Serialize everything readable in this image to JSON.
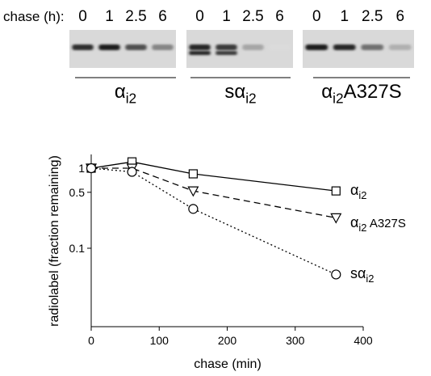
{
  "gel": {
    "chase_label": "chase (h):",
    "groups": [
      {
        "name": "αi2",
        "label_main": "α",
        "label_sub": "i2",
        "label_suffix": "",
        "time_labels": [
          "0",
          "1",
          "2.5",
          "6"
        ],
        "band_intensity": [
          0.85,
          0.95,
          0.7,
          0.45
        ]
      },
      {
        "name": "sαi2",
        "label_main": "sα",
        "label_sub": "i2",
        "label_suffix": "",
        "time_labels": [
          "0",
          "1",
          "2.5",
          "6"
        ],
        "band_intensity": [
          0.9,
          0.8,
          0.3,
          0.05
        ]
      },
      {
        "name": "αi2A327S",
        "label_main": "α",
        "label_sub": "i2",
        "label_suffix": "A327S",
        "time_labels": [
          "0",
          "1",
          "2.5",
          "6"
        ],
        "band_intensity": [
          0.95,
          0.9,
          0.55,
          0.25
        ]
      }
    ]
  },
  "chart_data": {
    "type": "line",
    "xlabel": "chase (min)",
    "ylabel": "radiolabel (fraction remaining)",
    "yscale": "log",
    "xlim": [
      0,
      400
    ],
    "ylim": [
      0.01,
      1.3
    ],
    "xticks": [
      0,
      100,
      200,
      300,
      400
    ],
    "yticks": [
      1,
      0.5,
      0.1
    ],
    "ytick_labels": [
      "1",
      "0.5",
      "0.1"
    ],
    "grid": false,
    "series": [
      {
        "name": "αi2",
        "label_main": "α",
        "label_sub": "i2",
        "label_suffix": "",
        "marker": "square",
        "line": "solid",
        "x": [
          0,
          60,
          150,
          360
        ],
        "y": [
          1.0,
          1.2,
          0.85,
          0.52
        ]
      },
      {
        "name": "αi2 A327S",
        "label_main": "α",
        "label_sub": "i2",
        "label_suffix": " A327S",
        "marker": "triangle-down",
        "line": "dashed",
        "x": [
          0,
          60,
          150,
          360
        ],
        "y": [
          1.0,
          1.0,
          0.52,
          0.24
        ]
      },
      {
        "name": "sαi2",
        "label_main": "sα",
        "label_sub": "i2",
        "label_suffix": "",
        "marker": "circle",
        "line": "dotted",
        "x": [
          0,
          60,
          150,
          360
        ],
        "y": [
          1.0,
          0.9,
          0.31,
          0.047
        ]
      }
    ]
  }
}
